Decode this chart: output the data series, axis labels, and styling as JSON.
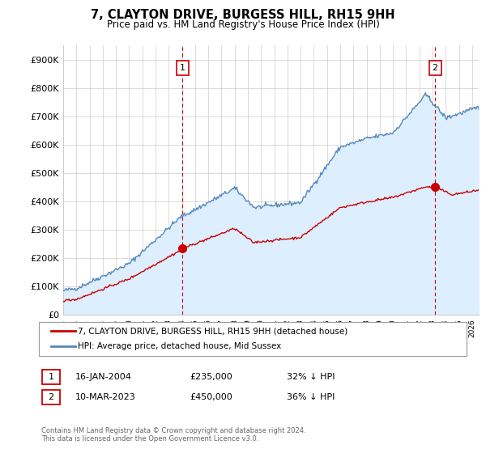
{
  "title": "7, CLAYTON DRIVE, BURGESS HILL, RH15 9HH",
  "subtitle": "Price paid vs. HM Land Registry's House Price Index (HPI)",
  "ylabel_ticks": [
    "£0",
    "£100K",
    "£200K",
    "£300K",
    "£400K",
    "£500K",
    "£600K",
    "£700K",
    "£800K",
    "£900K"
  ],
  "ytick_values": [
    0,
    100000,
    200000,
    300000,
    400000,
    500000,
    600000,
    700000,
    800000,
    900000
  ],
  "ylim": [
    0,
    950000
  ],
  "xlim_start": 1995.0,
  "xlim_end": 2026.5,
  "property_color": "#cc0000",
  "hpi_color": "#5588bb",
  "hpi_fill_color": "#ddeeff",
  "vline_color": "#cc0000",
  "marker1_date": 2004.04,
  "marker1_price": 235000,
  "marker2_date": 2023.19,
  "marker2_price": 450000,
  "legend_property": "7, CLAYTON DRIVE, BURGESS HILL, RH15 9HH (detached house)",
  "legend_hpi": "HPI: Average price, detached house, Mid Sussex",
  "annotation1_text": "16-JAN-2004",
  "annotation1_price": "£235,000",
  "annotation1_hpi": "32% ↓ HPI",
  "annotation2_text": "10-MAR-2023",
  "annotation2_price": "£450,000",
  "annotation2_hpi": "36% ↓ HPI",
  "footer": "Contains HM Land Registry data © Crown copyright and database right 2024.\nThis data is licensed under the Open Government Licence v3.0.",
  "background_color": "#ffffff",
  "grid_color": "#cccccc",
  "box_label_color": "#cc0000"
}
